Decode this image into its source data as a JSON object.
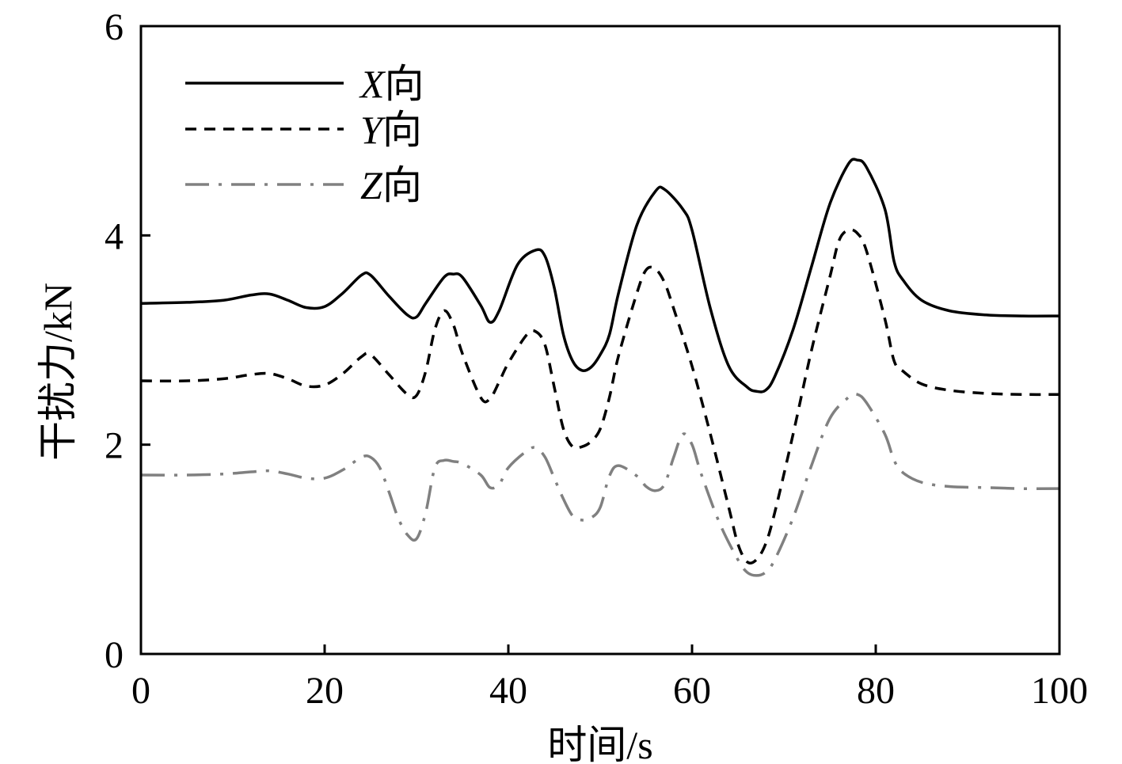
{
  "chart_data": {
    "type": "line",
    "xlabel": "时间/s",
    "ylabel": "干扰力/kN",
    "xlim": [
      0,
      100
    ],
    "ylim": [
      0,
      6
    ],
    "xticks": [
      0,
      20,
      40,
      60,
      80,
      100
    ],
    "yticks": [
      0,
      2,
      4,
      6
    ],
    "xtick_labels": [
      "0",
      "20",
      "40",
      "60",
      "80",
      "100"
    ],
    "ytick_labels": [
      "0",
      "2",
      "4",
      "6"
    ],
    "grid": false,
    "legend_position": "top-left",
    "series": [
      {
        "name": "X向",
        "name_italic": "X",
        "name_suffix": "向",
        "style": "solid",
        "color": "#000000",
        "x": [
          0,
          5,
          9,
          12,
          14,
          16,
          18,
          20,
          22,
          24,
          25,
          27,
          29,
          30,
          31,
          33,
          34,
          35,
          37,
          38,
          39,
          41,
          43,
          44,
          45,
          46,
          47,
          48,
          49,
          50,
          51,
          52,
          54,
          56,
          57,
          59,
          60,
          62,
          64,
          66,
          67,
          68,
          69,
          71,
          73,
          75,
          77,
          78,
          79,
          81,
          82,
          83,
          85,
          88,
          92,
          96,
          100
        ],
        "y": [
          3.35,
          3.36,
          3.38,
          3.43,
          3.44,
          3.38,
          3.31,
          3.32,
          3.45,
          3.62,
          3.62,
          3.42,
          3.24,
          3.22,
          3.35,
          3.6,
          3.63,
          3.6,
          3.33,
          3.17,
          3.28,
          3.72,
          3.86,
          3.8,
          3.5,
          3.05,
          2.8,
          2.71,
          2.74,
          2.86,
          3.05,
          3.45,
          4.1,
          4.42,
          4.44,
          4.25,
          4.05,
          3.3,
          2.75,
          2.55,
          2.51,
          2.52,
          2.65,
          3.1,
          3.7,
          4.3,
          4.68,
          4.72,
          4.65,
          4.25,
          3.75,
          3.57,
          3.38,
          3.28,
          3.24,
          3.23,
          3.23
        ]
      },
      {
        "name": "Y向",
        "name_italic": "Y",
        "name_suffix": "向",
        "style": "dashed",
        "color": "#000000",
        "x": [
          0,
          5,
          9,
          12,
          14,
          16,
          18,
          20,
          22,
          24,
          25,
          27,
          29,
          30,
          31,
          32,
          33,
          34,
          35,
          37,
          38,
          39,
          40,
          42,
          43,
          44,
          45,
          46,
          47,
          48,
          49,
          50,
          51,
          52,
          54,
          55,
          56,
          57,
          58,
          60,
          62,
          64,
          65,
          66,
          67,
          68,
          69,
          71,
          73,
          75,
          76,
          77,
          78,
          79,
          81,
          82,
          83,
          85,
          88,
          92,
          96,
          100
        ],
        "y": [
          2.61,
          2.61,
          2.63,
          2.67,
          2.68,
          2.63,
          2.56,
          2.57,
          2.68,
          2.84,
          2.86,
          2.67,
          2.48,
          2.47,
          2.7,
          3.1,
          3.28,
          3.15,
          2.87,
          2.45,
          2.44,
          2.6,
          2.78,
          3.05,
          3.08,
          2.95,
          2.55,
          2.15,
          1.98,
          1.98,
          2.03,
          2.15,
          2.45,
          2.85,
          3.45,
          3.67,
          3.68,
          3.55,
          3.3,
          2.75,
          2.1,
          1.4,
          1.05,
          0.88,
          0.9,
          1.05,
          1.35,
          2.1,
          2.9,
          3.6,
          3.95,
          4.05,
          4.02,
          3.85,
          3.2,
          2.8,
          2.7,
          2.58,
          2.52,
          2.49,
          2.48,
          2.48
        ]
      },
      {
        "name": "Z向",
        "name_italic": "Z",
        "name_suffix": "向",
        "style": "dashdot",
        "color": "#808080",
        "x": [
          0,
          5,
          9,
          12,
          14,
          16,
          18,
          20,
          22,
          24,
          25,
          26,
          27,
          28,
          29,
          30,
          31,
          32,
          33,
          34,
          35,
          37,
          38,
          39,
          40,
          42,
          43,
          44,
          45,
          46,
          47,
          48,
          49,
          50,
          51,
          52,
          54,
          55,
          56,
          57,
          58,
          59,
          60,
          61,
          63,
          65,
          66,
          67,
          68,
          69,
          71,
          73,
          75,
          77,
          78,
          79,
          81,
          82,
          83,
          85,
          88,
          92,
          96,
          100
        ],
        "y": [
          1.71,
          1.71,
          1.72,
          1.74,
          1.75,
          1.72,
          1.68,
          1.68,
          1.76,
          1.88,
          1.88,
          1.78,
          1.55,
          1.3,
          1.14,
          1.1,
          1.35,
          1.78,
          1.85,
          1.84,
          1.82,
          1.71,
          1.59,
          1.62,
          1.78,
          1.94,
          1.97,
          1.88,
          1.68,
          1.48,
          1.32,
          1.28,
          1.3,
          1.4,
          1.7,
          1.8,
          1.7,
          1.6,
          1.56,
          1.62,
          1.88,
          2.1,
          2.0,
          1.72,
          1.25,
          0.9,
          0.78,
          0.75,
          0.78,
          0.9,
          1.3,
          1.8,
          2.25,
          2.45,
          2.48,
          2.4,
          2.1,
          1.85,
          1.73,
          1.64,
          1.6,
          1.59,
          1.58,
          1.58
        ]
      }
    ]
  }
}
